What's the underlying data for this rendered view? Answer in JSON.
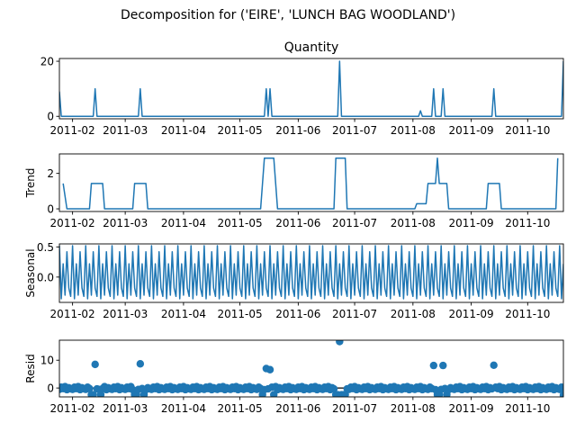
{
  "figure": {
    "title": "Decomposition for ('EIRE', 'LUNCH BAG WOODLAND')",
    "series_color": "#1f77b4"
  },
  "chart_data": [
    {
      "type": "line",
      "title": "Quantity",
      "ylabel": "",
      "x_range": [
        "2011-01-25",
        "2011-10-20"
      ],
      "ylim": [
        -0.9,
        21
      ],
      "yticks": [
        0,
        20
      ],
      "xtick_labels": [
        "2011-02",
        "2011-03",
        "2011-04",
        "2011-05",
        "2011-06",
        "2011-07",
        "2011-08",
        "2011-09",
        "2011-10"
      ],
      "baseline": 0,
      "spikes": [
        {
          "date": "2011-01-25",
          "value": 9
        },
        {
          "date": "2011-02-13",
          "value": 10
        },
        {
          "date": "2011-03-09",
          "value": 10
        },
        {
          "date": "2011-05-15",
          "value": 10
        },
        {
          "date": "2011-05-17",
          "value": 10
        },
        {
          "date": "2011-06-23",
          "value": 20
        },
        {
          "date": "2011-08-05",
          "value": 2
        },
        {
          "date": "2011-08-12",
          "value": 10
        },
        {
          "date": "2011-08-17",
          "value": 10
        },
        {
          "date": "2011-09-13",
          "value": 10
        },
        {
          "date": "2011-10-20",
          "value": 20
        }
      ]
    },
    {
      "type": "line",
      "title": "",
      "ylabel": "Trend",
      "x_range": [
        "2011-01-25",
        "2011-10-20"
      ],
      "ylim": [
        -0.15,
        3.1
      ],
      "yticks": [
        0,
        2
      ],
      "xtick_labels": [
        "2011-02",
        "2011-03",
        "2011-04",
        "2011-05",
        "2011-06",
        "2011-07",
        "2011-08",
        "2011-09",
        "2011-10"
      ],
      "points": [
        {
          "x": "2011-01-27",
          "y": 1.43
        },
        {
          "x": "2011-01-29",
          "y": 0
        },
        {
          "x": "2011-02-10",
          "y": 0
        },
        {
          "x": "2011-02-11",
          "y": 1.43
        },
        {
          "x": "2011-02-17",
          "y": 1.43
        },
        {
          "x": "2011-02-18",
          "y": 0
        },
        {
          "x": "2011-03-05",
          "y": 0
        },
        {
          "x": "2011-03-06",
          "y": 1.43
        },
        {
          "x": "2011-03-12",
          "y": 1.43
        },
        {
          "x": "2011-03-13",
          "y": 0
        },
        {
          "x": "2011-05-12",
          "y": 0
        },
        {
          "x": "2011-05-13",
          "y": 1.43
        },
        {
          "x": "2011-05-14",
          "y": 2.86
        },
        {
          "x": "2011-05-19",
          "y": 2.86
        },
        {
          "x": "2011-05-20",
          "y": 1.43
        },
        {
          "x": "2011-05-21",
          "y": 0
        },
        {
          "x": "2011-06-20",
          "y": 0
        },
        {
          "x": "2011-06-21",
          "y": 2.86
        },
        {
          "x": "2011-06-26",
          "y": 2.86
        },
        {
          "x": "2011-06-27",
          "y": 0
        },
        {
          "x": "2011-08-02",
          "y": 0
        },
        {
          "x": "2011-08-03",
          "y": 0.29
        },
        {
          "x": "2011-08-08",
          "y": 0.29
        },
        {
          "x": "2011-08-09",
          "y": 1.43
        },
        {
          "x": "2011-08-13",
          "y": 1.43
        },
        {
          "x": "2011-08-14",
          "y": 2.86
        },
        {
          "x": "2011-08-15",
          "y": 1.43
        },
        {
          "x": "2011-08-19",
          "y": 1.43
        },
        {
          "x": "2011-08-20",
          "y": 0
        },
        {
          "x": "2011-09-09",
          "y": 0
        },
        {
          "x": "2011-09-10",
          "y": 1.43
        },
        {
          "x": "2011-09-16",
          "y": 1.43
        },
        {
          "x": "2011-09-17",
          "y": 0
        },
        {
          "x": "2011-10-16",
          "y": 0
        },
        {
          "x": "2011-10-17",
          "y": 2.86
        }
      ]
    },
    {
      "type": "line",
      "title": "",
      "ylabel": "Seasonal",
      "x_range": [
        "2011-01-25",
        "2011-10-20"
      ],
      "ylim": [
        -0.42,
        0.55
      ],
      "yticks": [
        0.0,
        0.5
      ],
      "xtick_labels": [
        "2011-02",
        "2011-03",
        "2011-04",
        "2011-05",
        "2011-06",
        "2011-07",
        "2011-08",
        "2011-09",
        "2011-10"
      ],
      "period_days": 7,
      "start": "2011-01-25",
      "end": "2011-10-20",
      "weekly_pattern": [
        0.52,
        -0.36,
        0.22,
        -0.3,
        0.42,
        -0.18,
        -0.32
      ]
    },
    {
      "type": "scatter",
      "title": "",
      "ylabel": "Resid",
      "x_range": [
        "2011-01-25",
        "2011-10-20"
      ],
      "ylim": [
        -3.2,
        17.2
      ],
      "yticks": [
        0,
        10
      ],
      "xtick_labels": [
        "2011-02",
        "2011-03",
        "2011-04",
        "2011-05",
        "2011-06",
        "2011-07",
        "2011-08",
        "2011-09",
        "2011-10"
      ],
      "outliers": [
        {
          "x": "2011-02-13",
          "y": 8.5
        },
        {
          "x": "2011-03-09",
          "y": 8.7
        },
        {
          "x": "2011-05-15",
          "y": 7.0
        },
        {
          "x": "2011-05-17",
          "y": 6.6
        },
        {
          "x": "2011-06-23",
          "y": 16.7
        },
        {
          "x": "2011-08-12",
          "y": 8.1
        },
        {
          "x": "2011-08-17",
          "y": 8.1
        },
        {
          "x": "2011-09-13",
          "y": 8.2
        },
        {
          "x": "2011-10-20",
          "y": -2.5
        }
      ],
      "low_dates": [
        "2011-02-11",
        "2011-02-12",
        "2011-02-16",
        "2011-03-06",
        "2011-03-07",
        "2011-03-11",
        "2011-05-13",
        "2011-05-19",
        "2011-06-21",
        "2011-06-22",
        "2011-06-24",
        "2011-06-25",
        "2011-06-26",
        "2011-08-14",
        "2011-08-15",
        "2011-08-19"
      ],
      "low_value": -2.4
    }
  ]
}
